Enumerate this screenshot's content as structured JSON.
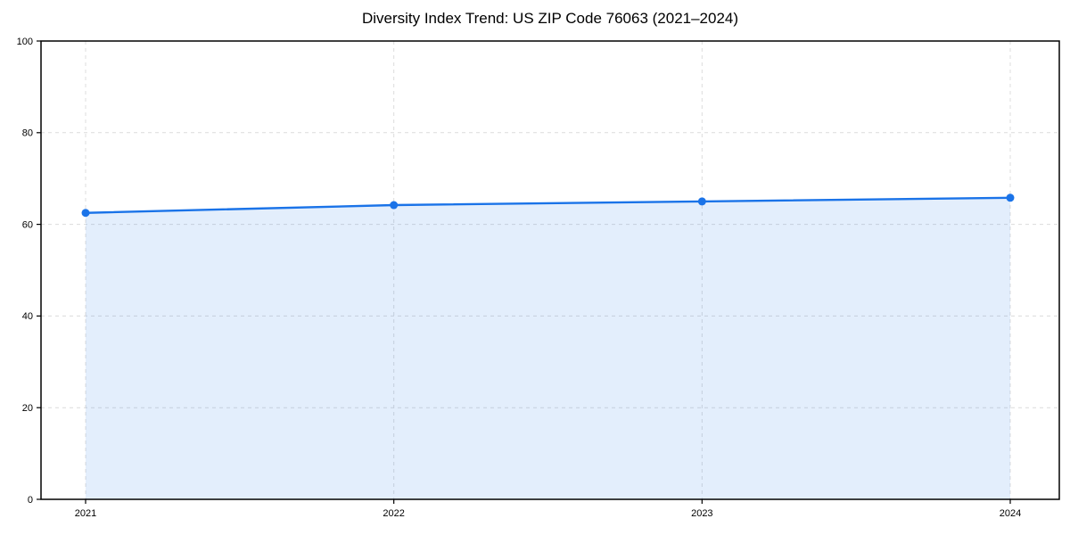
{
  "figure": {
    "background": "#ffffff"
  },
  "chart_data": {
    "type": "area",
    "title": "Diversity Index Trend: US ZIP Code 76063 (2021–2024)",
    "categories": [
      "2021",
      "2022",
      "2023",
      "2024"
    ],
    "series": [
      {
        "name": "Diversity Index",
        "values": [
          62.5,
          64.2,
          65.0,
          65.8
        ]
      }
    ],
    "xlabel": "",
    "ylabel": "",
    "ylim": [
      0,
      100
    ],
    "yticks": [
      0,
      20,
      40,
      60,
      80,
      100
    ],
    "grid": true,
    "grid_style": "dashed",
    "legend": "none",
    "colors": {
      "line": "#1a73e8",
      "marker": "#1a73e8",
      "fill": "#1a73e8",
      "fill_opacity": 0.12,
      "grid": "#dcdcdc",
      "spine": "#000000",
      "text": "#000000"
    }
  }
}
